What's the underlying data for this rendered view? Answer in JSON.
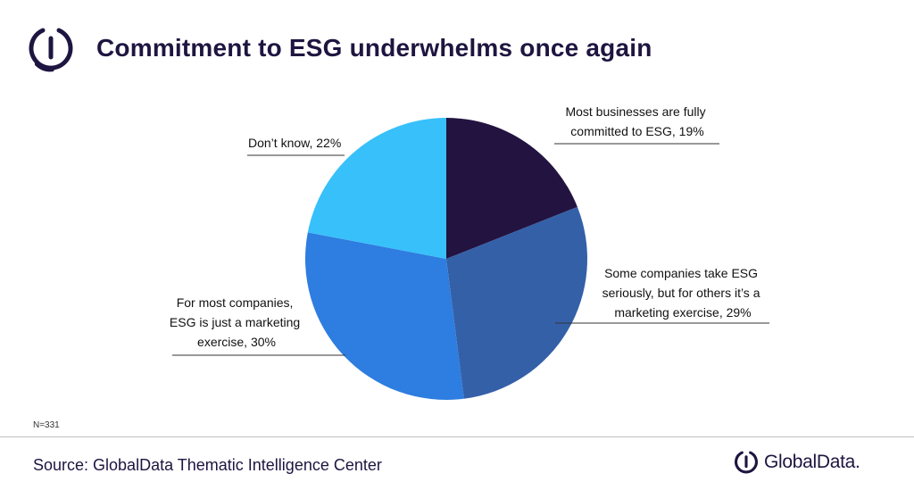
{
  "header": {
    "title": "Commitment to ESG underwhelms once again",
    "logo_icon": "globaldata-logo-icon"
  },
  "chart_data": {
    "type": "pie",
    "slices": [
      {
        "label_lines": [
          "Most businesses are fully",
          "committed to ESG, 19%"
        ],
        "value": 19,
        "color": "#221340"
      },
      {
        "label_lines": [
          "Some companies take ESG",
          "seriously, but for others it’s a",
          "marketing exercise, 29%"
        ],
        "value": 29,
        "color": "#3460a8"
      },
      {
        "label_lines": [
          "For most companies,",
          "ESG is just a marketing",
          "exercise, 30%"
        ],
        "value": 30,
        "color": "#2e7de0"
      },
      {
        "label_lines": [
          "Don’t know, 22%"
        ],
        "value": 22,
        "color": "#38c0fa"
      }
    ],
    "start_angle_deg": 0,
    "direction": "clockwise"
  },
  "footer": {
    "sample_size": "N=331",
    "source": "Source: GlobalData Thematic Intelligence Center",
    "brand": "GlobalData."
  },
  "colors": {
    "title": "#1e1540",
    "accent": "#1e1540"
  }
}
